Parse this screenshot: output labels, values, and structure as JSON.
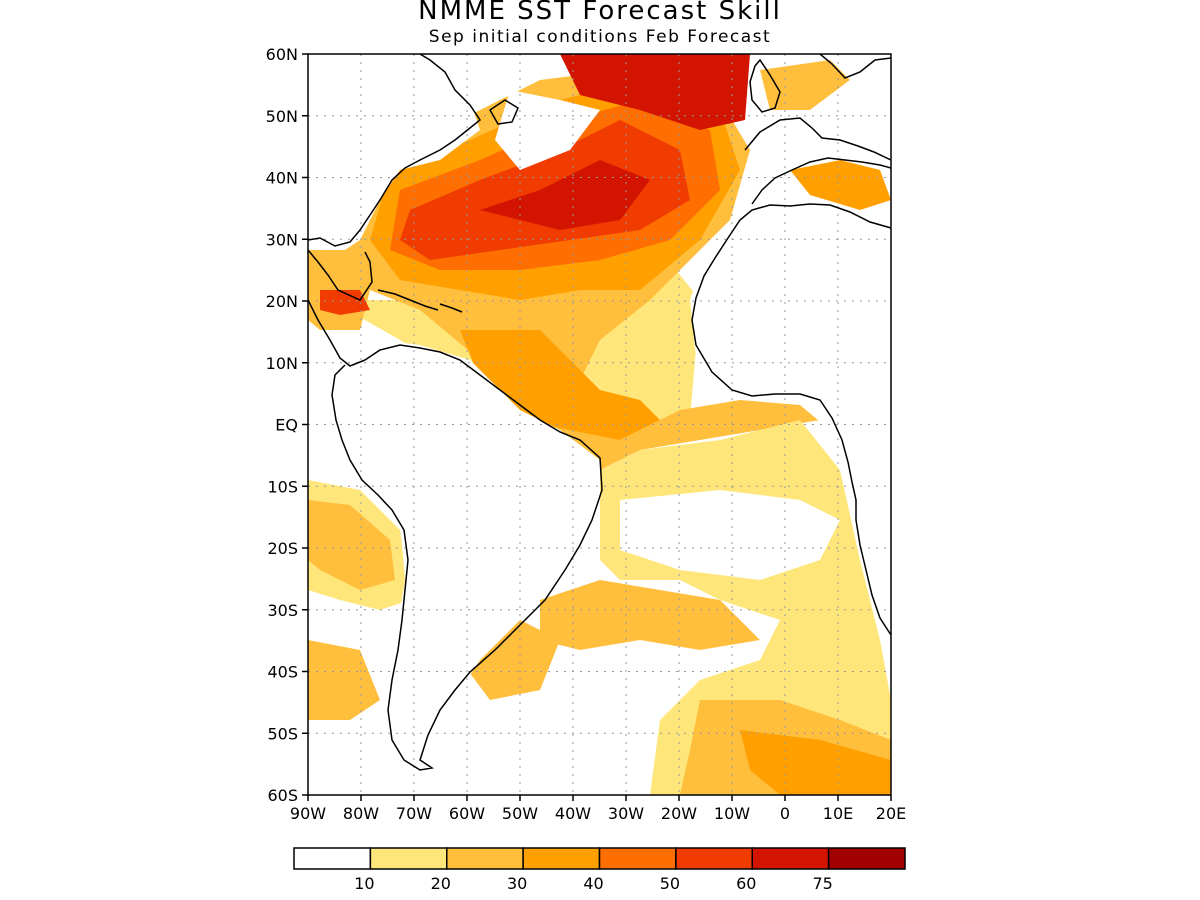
{
  "title": "NMME SST Forecast Skill",
  "subtitle": "Sep initial conditions  Feb Forecast",
  "lat_labels": [
    "60N",
    "50N",
    "40N",
    "30N",
    "20N",
    "10N",
    "EQ",
    "10S",
    "20S",
    "30S",
    "40S",
    "50S",
    "60S"
  ],
  "lon_labels": [
    "90W",
    "80W",
    "70W",
    "60W",
    "50W",
    "40W",
    "30W",
    "20W",
    "10W",
    "0",
    "10E",
    "20E"
  ],
  "colorbar": {
    "colors": [
      "#ffffff",
      "#ffe67a",
      "#ffbe3c",
      "#ffa000",
      "#ff6e00",
      "#f03c00",
      "#d21400",
      "#a00000"
    ],
    "labels": [
      "10",
      "20",
      "30",
      "40",
      "50",
      "60",
      "75"
    ]
  },
  "colors": {
    "coastline": "#000000",
    "grid": "#999999"
  }
}
